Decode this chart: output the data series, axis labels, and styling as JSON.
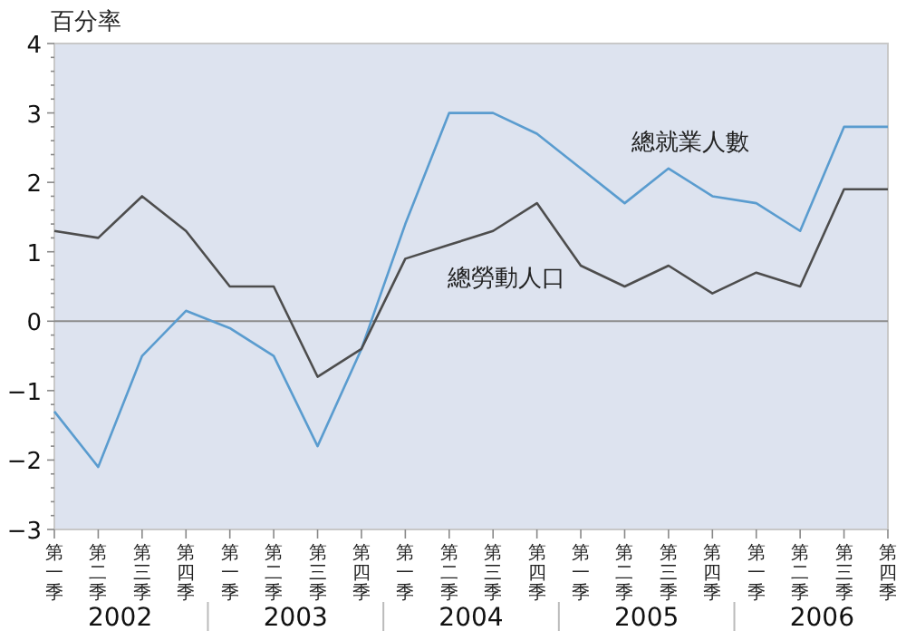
{
  "chart_data": {
    "type": "line",
    "ylabel": "百分率",
    "categories": [
      "第一季",
      "第二季",
      "第三季",
      "第四季",
      "第一季",
      "第二季",
      "第三季",
      "第四季",
      "第一季",
      "第二季",
      "第三季",
      "第四季",
      "第一季",
      "第二季",
      "第三季",
      "第四季",
      "第一季",
      "第二季",
      "第三季",
      "第四季"
    ],
    "annotations": [
      "2002",
      "2003",
      "2004",
      "2005",
      "2006"
    ],
    "series": [
      {
        "name": "總就業人數",
        "color": "#5a9ccf",
        "values": [
          -1.3,
          -2.1,
          -0.5,
          0.15,
          -0.1,
          -0.5,
          -1.8,
          -0.4,
          1.4,
          3.0,
          3.0,
          2.7,
          2.2,
          1.7,
          2.2,
          1.8,
          1.7,
          1.3,
          2.8,
          2.8
        ]
      },
      {
        "name": "總勞動人口",
        "color": "#4d4d4d",
        "values": [
          1.3,
          1.2,
          1.8,
          1.3,
          0.5,
          0.5,
          -0.8,
          -0.4,
          0.9,
          1.1,
          1.3,
          1.7,
          0.8,
          0.5,
          0.8,
          0.4,
          0.7,
          0.5,
          1.9,
          1.9
        ]
      }
    ],
    "ylim": [
      -3,
      4
    ],
    "yticks": [
      -3,
      {
        "value": -2.8,
        "label": null
      },
      {
        "value": -2.6,
        "label": null
      },
      {
        "value": -2.4,
        "label": null
      },
      {
        "value": -2.2,
        "label": null
      },
      -2,
      {
        "value": -1.8,
        "label": null
      },
      {
        "value": -1.6,
        "label": null
      },
      {
        "value": -1.4,
        "label": null
      },
      {
        "value": -1.2,
        "label": null
      },
      -1,
      {
        "value": -0.8,
        "label": null
      },
      {
        "value": -0.6,
        "label": null
      },
      {
        "value": -0.4,
        "label": null
      },
      {
        "value": -0.2,
        "label": null
      },
      0,
      {
        "value": 0.2,
        "label": null
      },
      {
        "value": 0.4,
        "label": null
      },
      {
        "value": 0.6,
        "label": null
      },
      {
        "value": 0.8,
        "label": null
      },
      1,
      {
        "value": 1.2,
        "label": null
      },
      {
        "value": 1.4,
        "label": null
      },
      {
        "value": 1.6,
        "label": null
      },
      {
        "value": 1.8,
        "label": null
      },
      2,
      {
        "value": 2.2,
        "label": null
      },
      {
        "value": 2.4,
        "label": null
      },
      {
        "value": 2.6,
        "label": null
      },
      {
        "value": 2.8,
        "label": null
      },
      3,
      {
        "value": 3.2,
        "label": null
      },
      {
        "value": 3.4,
        "label": null
      },
      {
        "value": 3.6,
        "label": null
      },
      {
        "value": 3.8,
        "label": null
      },
      4
    ],
    "ref_lines": [
      {
        "axis": "y",
        "value": 0,
        "color": "#8c8c8c"
      }
    ],
    "grid": false,
    "marker": "none",
    "line_style": "solid"
  }
}
